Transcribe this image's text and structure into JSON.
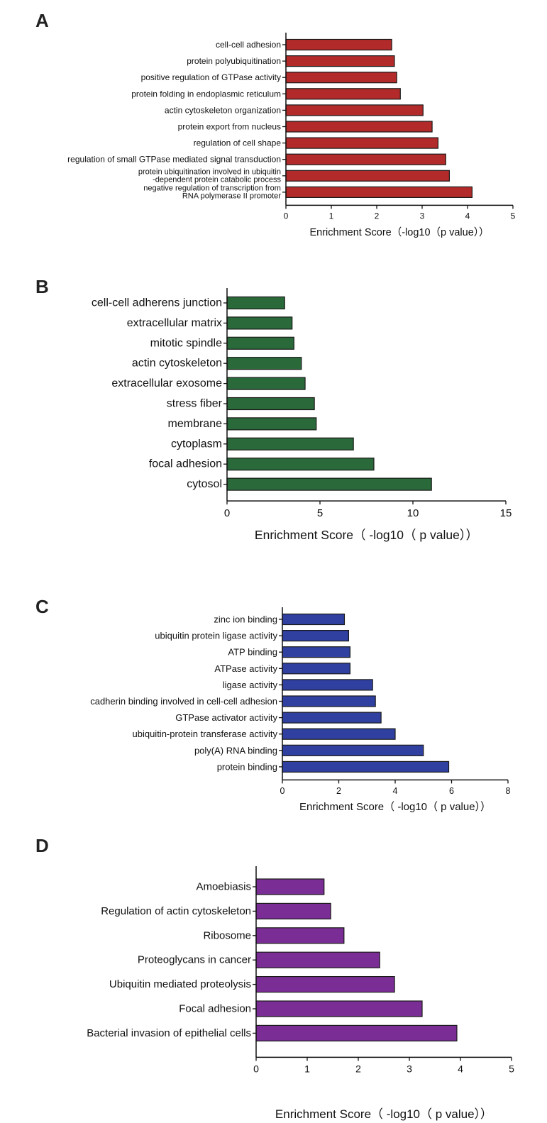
{
  "chart_data": [
    {
      "type": "bar",
      "orientation": "horizontal",
      "panel": "A",
      "color": "#b22a2a",
      "categories": [
        "cell-cell adhesion",
        "protein polyubiquitination",
        "positive regulation of GTPase activity",
        "protein folding in endoplasmic reticulum",
        "actin cytoskeleton organization",
        "protein export from nucleus",
        "regulation of cell shape",
        "regulation of small GTPase mediated signal transduction",
        [
          "protein ubiquitination involved in ubiquitin",
          "-dependent protein catabolic process"
        ],
        [
          "negative regulation of transcription from",
          "RNA polymerase II promoter"
        ]
      ],
      "values": [
        2.33,
        2.39,
        2.44,
        2.52,
        3.02,
        3.22,
        3.35,
        3.52,
        3.6,
        4.1
      ],
      "xlabel": "Enrichment Score（-log10（p value））",
      "xlim": [
        0,
        5
      ],
      "xticks": [
        0,
        1,
        2,
        3,
        4,
        5
      ]
    },
    {
      "type": "bar",
      "orientation": "horizontal",
      "panel": "B",
      "color": "#2a6a3a",
      "categories": [
        "cell-cell adherens junction",
        "extracellular matrix",
        "mitotic spindle",
        "actin cytoskeleton",
        "extracellular exosome",
        "stress fiber",
        "membrane",
        "cytoplasm",
        "focal adhesion",
        "cytosol"
      ],
      "values": [
        3.1,
        3.5,
        3.6,
        4.0,
        4.2,
        4.7,
        4.8,
        6.8,
        7.9,
        11.0
      ],
      "xlabel": "Enrichment Score（ -log10（ p value））",
      "xlim": [
        0,
        15
      ],
      "xticks": [
        0,
        5,
        10,
        15
      ]
    },
    {
      "type": "bar",
      "orientation": "horizontal",
      "panel": "C",
      "color": "#2f40a0",
      "categories": [
        "zinc ion binding",
        "ubiquitin protein ligase activity",
        "ATP binding",
        "ATPase activity",
        "ligase activity",
        "cadherin binding involved in cell-cell adhesion",
        "GTPase activator activity",
        "ubiquitin-protein transferase activity",
        "poly(A) RNA binding",
        "protein binding"
      ],
      "values": [
        2.2,
        2.35,
        2.4,
        2.4,
        3.2,
        3.3,
        3.5,
        4.0,
        5.0,
        5.9
      ],
      "xlabel": "Enrichment Score（ -log10（ p value））",
      "xlim": [
        0,
        8
      ],
      "xticks": [
        0,
        2,
        4,
        6,
        8
      ]
    },
    {
      "type": "bar",
      "orientation": "horizontal",
      "panel": "D",
      "color": "#7a2e95",
      "categories": [
        "Amoebiasis",
        "Regulation of actin cytoskeleton",
        "Ribosome",
        "Proteoglycans in cancer",
        "Ubiquitin mediated proteolysis",
        "Focal adhesion",
        "Bacterial invasion of epithelial cells"
      ],
      "values": [
        1.33,
        1.46,
        1.72,
        2.42,
        2.71,
        3.25,
        3.93
      ],
      "xlabel": "Enrichment Score（ -log10（ p value））",
      "xlim": [
        0,
        5
      ],
      "xticks": [
        0,
        1,
        2,
        3,
        4,
        5
      ]
    }
  ]
}
